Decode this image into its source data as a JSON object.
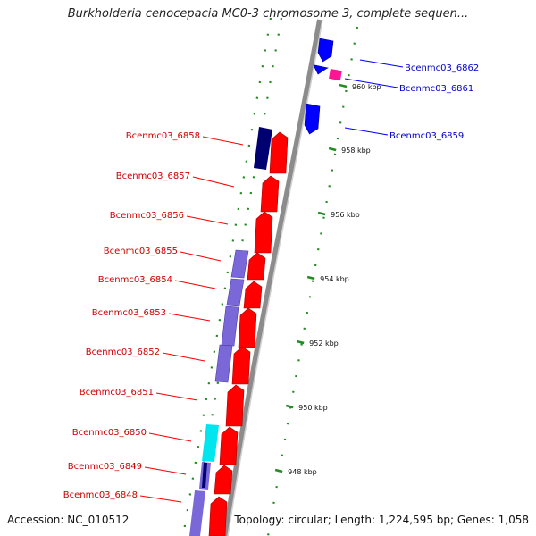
{
  "title": "Burkholderia cenocepacia MC0-3 chromosome 3, complete sequen...",
  "footer": {
    "accession": "Accession: NC_010512",
    "summary": "Topology: circular; Length: 1,224,595 bp; Genes: 1,058"
  },
  "colors": {
    "forward_gene": "#ff0000",
    "reverse_gene": "#0000ff",
    "reverse_label": "#0000cc",
    "forward_label": "#cc0000",
    "pink_gene": "#ff1493",
    "cyan_track": "#00e5ee",
    "slate_track": "#7b68d8",
    "navy_track": "#000070",
    "tick_green": "#228b22",
    "backbone": "#8c8c8c"
  },
  "scale_labels": [
    "960 kbp",
    "958 kbp",
    "956 kbp",
    "954 kbp",
    "952 kbp",
    "950 kbp",
    "948 kbp"
  ],
  "reverse_genes": [
    "Bcenmc03_6862",
    "Bcenmc03_6861",
    "Bcenmc03_6859"
  ],
  "forward_genes": [
    "Bcenmc03_6858",
    "Bcenmc03_6857",
    "Bcenmc03_6856",
    "Bcenmc03_6855",
    "Bcenmc03_6854",
    "Bcenmc03_6853",
    "Bcenmc03_6852",
    "Bcenmc03_6851",
    "Bcenmc03_6850",
    "Bcenmc03_6849",
    "Bcenmc03_6848"
  ]
}
